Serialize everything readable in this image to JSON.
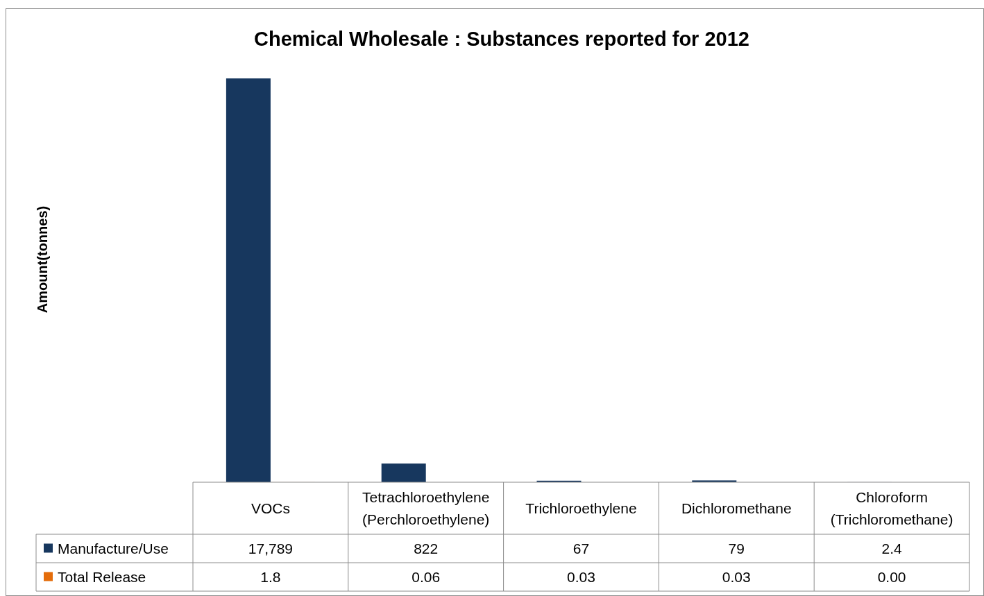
{
  "chart_data": {
    "type": "bar",
    "title": "Chemical Wholesale : Substances reported for 2012",
    "annotations": [
      "Amount(tonnes)"
    ],
    "categories": [
      "VOCs",
      "Tetrachloroethylene (Perchloroethylene)",
      "Trichloroethylene",
      "Dichloromethane",
      "Chloroform (Trichloromethane)"
    ],
    "series": [
      {
        "name": "Manufacture/Use",
        "color": "#17375e",
        "values": [
          17789,
          822,
          67,
          79,
          2.4
        ],
        "value_labels": [
          "17,789",
          "822",
          "67",
          "79",
          "2.4"
        ]
      },
      {
        "name": "Total Release",
        "color": "#e46c0a",
        "values": [
          1.8,
          0.06,
          0.03,
          0.03,
          0
        ],
        "value_labels": [
          "1.8",
          "0.06",
          "0.03",
          "0.03",
          "0.00"
        ]
      }
    ],
    "tick_labels": "x",
    "legend": "bottom"
  }
}
